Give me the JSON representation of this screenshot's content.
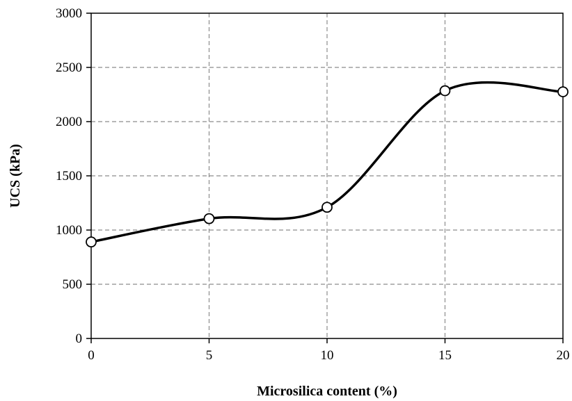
{
  "chart_data": {
    "type": "line",
    "xlabel": "Microsilica content (%)",
    "ylabel": "UCS (kPa)",
    "xlim": [
      0,
      20
    ],
    "ylim": [
      0,
      3000
    ],
    "x_ticks": [
      "0",
      "5",
      "10",
      "15",
      "20"
    ],
    "y_ticks": [
      "0",
      "500",
      "1000",
      "1500",
      "2000",
      "2500",
      "3000"
    ],
    "grid": true,
    "grid_style": "dashed",
    "smooth": true,
    "marker": "open-circle",
    "series": [
      {
        "x": [
          0,
          5,
          10,
          15,
          20
        ],
        "values": [
          890,
          1105,
          1210,
          2285,
          2275
        ]
      }
    ]
  }
}
